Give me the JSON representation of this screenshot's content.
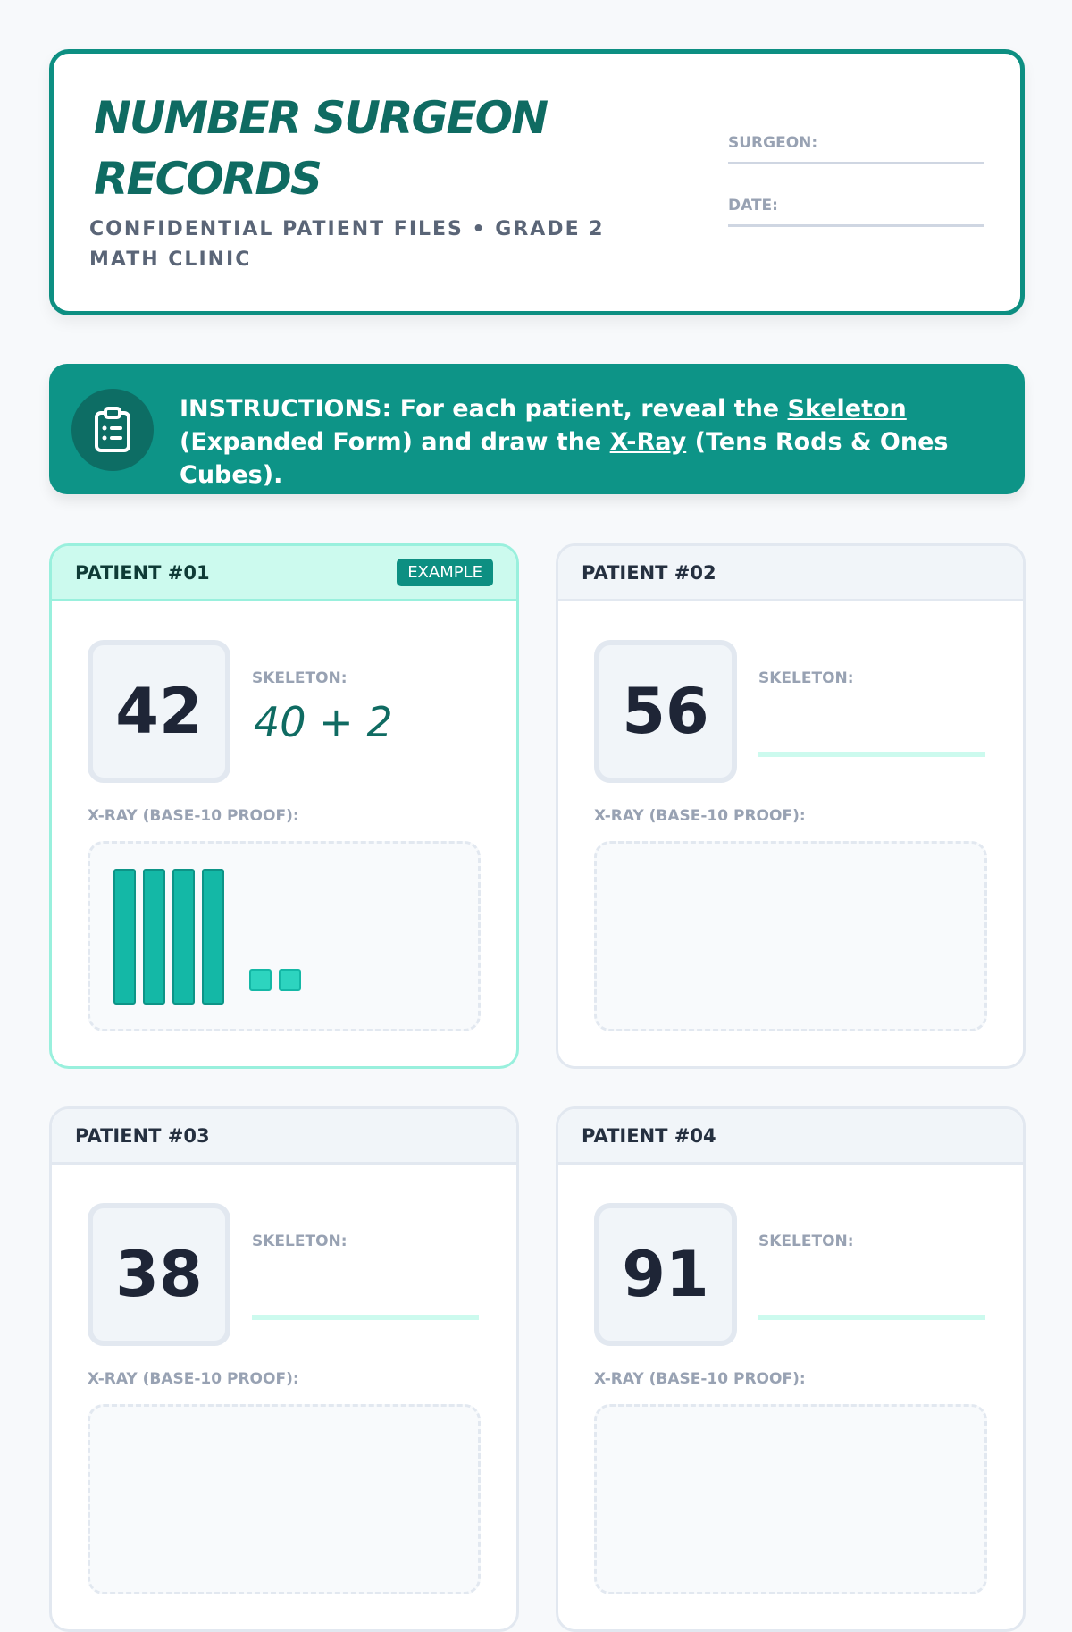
{
  "header": {
    "title": "NUMBER SURGEON RECORDS",
    "subtitle": "CONFIDENTIAL PATIENT FILES • GRADE 2 MATH CLINIC",
    "surgeon_label": "SURGEON:",
    "date_label": "DATE:"
  },
  "instructions": {
    "icon": "clipboard-icon",
    "prefix": "INSTRUCTIONS: For each patient, reveal the ",
    "skeleton": "Skeleton",
    "middle": " (Expanded Form) and draw the ",
    "xray": "X-Ray",
    "suffix": " (Tens Rods & Ones Cubes)."
  },
  "patients": [
    {
      "label": "PATIENT #01",
      "badge": "EXAMPLE",
      "number": "42",
      "skeleton_label": "SKELETON:",
      "skeleton": "40 + 2",
      "xray_label": "X-RAY (BASE-10 PROOF):",
      "tens": 4,
      "ones": 2
    },
    {
      "label": "PATIENT #02",
      "number": "56",
      "skeleton_label": "SKELETON:",
      "xray_label": "X-RAY (BASE-10 PROOF):"
    },
    {
      "label": "PATIENT #03",
      "number": "38",
      "skeleton_label": "SKELETON:",
      "xray_label": "X-RAY (BASE-10 PROOF):"
    },
    {
      "label": "PATIENT #04",
      "number": "91",
      "skeleton_label": "SKELETON:",
      "xray_label": "X-RAY (BASE-10 PROOF):"
    }
  ],
  "colors": {
    "accent": "#0d9487",
    "title": "#0f6b62",
    "rod": "#14b8a6",
    "cube": "#2dd4bf"
  }
}
